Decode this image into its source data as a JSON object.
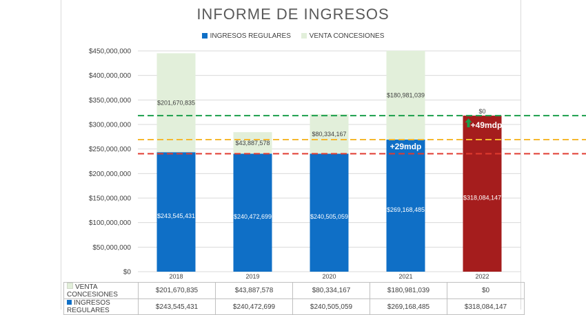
{
  "chart_data": {
    "type": "bar",
    "stacked": true,
    "title": "INFORME DE INGRESOS",
    "categories": [
      "2018",
      "2019",
      "2020",
      "2021",
      "2022"
    ],
    "series": [
      {
        "name": "INGRESOS REGULARES",
        "values": [
          243545431,
          240472699,
          240505059,
          269168485,
          318084147
        ],
        "labels": [
          "$243,545,431",
          "$240,472,699",
          "$240,505,059",
          "$269,168,485",
          "$318,084,147"
        ],
        "color": "#0f6fc6"
      },
      {
        "name": "VENTA CONCESIONES",
        "values": [
          201670835,
          43887578,
          80334167,
          180981039,
          0
        ],
        "labels": [
          "$201,670,835",
          "$43,887,578",
          "$80,334,167",
          "$180,981,039",
          "$0"
        ],
        "color": "#e2efda"
      }
    ],
    "highlight_color": "#a51d1d",
    "highlight_index": 4,
    "yticks": [
      "$450,000,000",
      "$400,000,000",
      "$350,000,000",
      "$300,000,000",
      "$250,000,000",
      "$200,000,000",
      "$150,000,000",
      "$100,000,000",
      "$50,000,000",
      "$0"
    ],
    "ylim": [
      0,
      450000000
    ],
    "grid": true,
    "legend": "top-center",
    "reference_lines": [
      {
        "value": 318084147,
        "color": "#1a9e4a"
      },
      {
        "value": 269168485,
        "color": "#f5b82e"
      },
      {
        "value": 240505059,
        "color": "#e03a2f"
      }
    ],
    "annotations": [
      {
        "text": "+29mdp",
        "category": "2021",
        "value": 269168485
      },
      {
        "text": "+49mdp",
        "category": "2022",
        "value": 318084147,
        "arrow": "up",
        "arrow_color": "#1a9e4a"
      }
    ]
  },
  "table": {
    "rows": [
      {
        "label": "VENTA CONCESIONES",
        "color": "#e2efda",
        "cells": [
          "$201,670,835",
          "$43,887,578",
          "$80,334,167",
          "$180,981,039",
          "$0"
        ]
      },
      {
        "label": "INGRESOS REGULARES",
        "color": "#0f6fc6",
        "cells": [
          "$243,545,431",
          "$240,472,699",
          "$240,505,059",
          "$269,168,485",
          "$318,084,147"
        ]
      }
    ]
  }
}
